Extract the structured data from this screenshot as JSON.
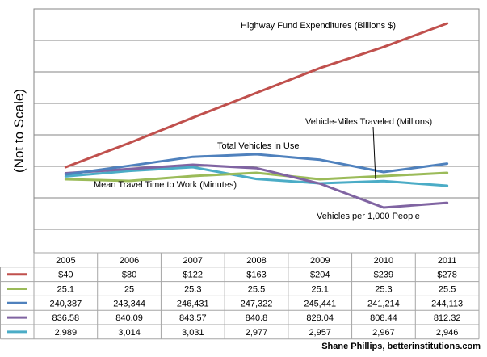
{
  "chart_data": {
    "type": "line",
    "title": "",
    "ylabel": "(Not to Scale)",
    "years": [
      "2005",
      "2006",
      "2007",
      "2008",
      "2009",
      "2010",
      "2011"
    ],
    "series": [
      {
        "name": "Highway Fund Expenditures (Billions $)",
        "color": "#c0504d",
        "table_values": [
          "$40",
          "$80",
          "$122",
          "$163",
          "$204",
          "$239",
          "$278"
        ],
        "values": [
          40,
          80,
          122,
          163,
          204,
          239,
          278
        ]
      },
      {
        "name": "Mean Travel Time to Work (Minutes)",
        "color": "#9bbb59",
        "table_values": [
          "25.1",
          "25",
          "25.3",
          "25.5",
          "25.1",
          "25.3",
          "25.5"
        ],
        "values": [
          25.1,
          25,
          25.3,
          25.5,
          25.1,
          25.3,
          25.5
        ]
      },
      {
        "name": "Total Vehicles in Use",
        "color": "#4f81bd",
        "table_values": [
          "240,387",
          "243,344",
          "246,431",
          "247,322",
          "245,441",
          "241,214",
          "244,113"
        ],
        "values": [
          240387,
          243344,
          246431,
          247322,
          245441,
          241214,
          244113
        ]
      },
      {
        "name": "Vehicles per 1,000 People",
        "color": "#8064a2",
        "table_values": [
          "836.58",
          "840.09",
          "843.57",
          "840.8",
          "828.04",
          "808.44",
          "812.32"
        ],
        "values": [
          836.58,
          840.09,
          843.57,
          840.8,
          828.04,
          808.44,
          812.32
        ]
      },
      {
        "name": "Vehicle-Miles Traveled (Millions)",
        "color": "#4bacc6",
        "table_values": [
          "2,989",
          "3,014",
          "3,031",
          "2,977",
          "2,957",
          "2,967",
          "2,946"
        ],
        "values": [
          2989,
          3014,
          3031,
          2977,
          2957,
          2967,
          2946
        ]
      }
    ],
    "grid": true,
    "legend": "data table with color keys below chart"
  },
  "credit": "Shane Phillips, betterinstitutions.com"
}
